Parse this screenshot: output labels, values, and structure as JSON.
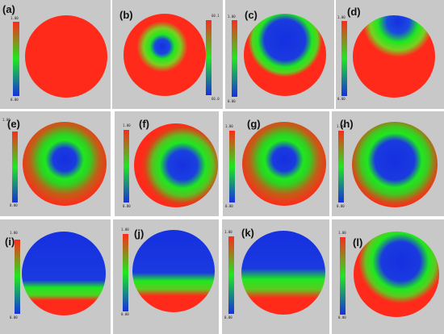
{
  "figure": {
    "panels": [
      {
        "label": "(a)",
        "scale_max": "1.00",
        "scale_min": "0.00",
        "pattern": "uniform-red"
      },
      {
        "label": "(b)",
        "scale_max": "60.1",
        "scale_min": "66.0",
        "pattern": "central-small-blue"
      },
      {
        "label": "(c)",
        "scale_max": "1.00",
        "scale_min": "0.00",
        "pattern": "upper-blue-red-bottom"
      },
      {
        "label": "(d)",
        "scale_max": "1.00",
        "scale_min": "0.00",
        "pattern": "top-blue-lobe"
      },
      {
        "label": "(e)",
        "scale_max": "1.00",
        "scale_min": "0.00",
        "pattern": "central-blue-ring"
      },
      {
        "label": "(f)",
        "scale_max": "1.00",
        "scale_min": "0.00",
        "pattern": "tilted-blue-blob"
      },
      {
        "label": "(g)",
        "scale_max": "1.00",
        "scale_min": "0.00",
        "pattern": "central-blue-ring"
      },
      {
        "label": "(h)",
        "scale_max": "1.00",
        "scale_min": "0.00",
        "pattern": "large-blue-ring"
      },
      {
        "label": "(i)",
        "scale_max": "1.00",
        "scale_min": "0.00",
        "pattern": "blue-over-red-band"
      },
      {
        "label": "(j)",
        "scale_max": "1.00",
        "scale_min": "0.00",
        "pattern": "blue-over-red-band"
      },
      {
        "label": "(k)",
        "scale_max": "1.00",
        "scale_min": "0.00",
        "pattern": "blue-over-red-band"
      },
      {
        "label": "(l)",
        "scale_max": "1.00",
        "scale_min": "0.00",
        "pattern": "blue-over-red-band"
      }
    ],
    "colors": {
      "background": "#c8c8c8",
      "high": "#ff2a1a",
      "mid": "#1fe81f",
      "low": "#1530e0",
      "edge_tint": "#f4b8c8"
    }
  }
}
